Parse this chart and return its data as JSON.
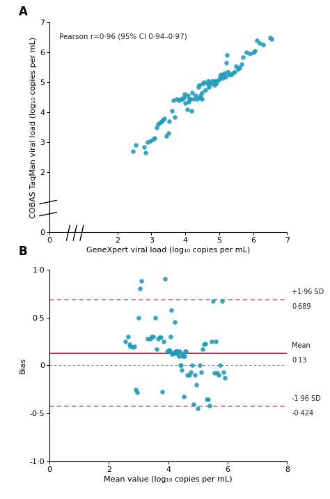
{
  "panel_A": {
    "label": "A",
    "xlabel": "GeneXpert viral load (log₁₀ copies per mL)",
    "ylabel": "COBAS TaqMan viral load (log₁₀ copies per mL)",
    "annotation": "Pearson r=0·96 (95% CI 0·94–0·97)",
    "xlim": [
      0,
      7
    ],
    "ylim": [
      0,
      7
    ],
    "xticks": [
      0,
      2,
      3,
      4,
      5,
      6,
      7
    ],
    "yticks": [
      0,
      2,
      3,
      4,
      5,
      6,
      7
    ],
    "dot_color": "#1E9BBD",
    "scatter_x": [
      2.45,
      2.55,
      2.78,
      2.82,
      2.9,
      2.98,
      3.05,
      3.1,
      3.15,
      3.2,
      3.25,
      3.3,
      3.35,
      3.38,
      3.45,
      3.5,
      3.52,
      3.6,
      3.65,
      3.7,
      3.75,
      3.82,
      3.88,
      3.92,
      3.95,
      3.98,
      4.0,
      4.05,
      4.08,
      4.1,
      4.12,
      4.15,
      4.18,
      4.2,
      4.25,
      4.3,
      4.35,
      4.38,
      4.4,
      4.42,
      4.45,
      4.48,
      4.5,
      4.52,
      4.55,
      4.6,
      4.65,
      4.68,
      4.7,
      4.75,
      4.8,
      4.85,
      4.88,
      4.9,
      4.95,
      5.0,
      5.02,
      5.05,
      5.1,
      5.12,
      5.15,
      5.18,
      5.2,
      5.22,
      5.25,
      5.3,
      5.35,
      5.4,
      5.45,
      5.5,
      5.55,
      5.6,
      5.65,
      5.7,
      5.8,
      5.9,
      6.0,
      6.05,
      6.1,
      6.2,
      6.3,
      6.5,
      6.55
    ],
    "scatter_y": [
      2.7,
      2.9,
      2.85,
      2.65,
      3.0,
      3.05,
      3.1,
      3.15,
      3.5,
      3.6,
      3.65,
      3.7,
      3.75,
      3.8,
      3.2,
      3.3,
      3.7,
      4.05,
      4.4,
      3.85,
      4.45,
      4.4,
      4.45,
      4.45,
      4.5,
      4.6,
      4.3,
      4.1,
      4.55,
      4.35,
      4.45,
      4.45,
      4.05,
      4.65,
      4.45,
      4.55,
      4.45,
      4.85,
      4.9,
      4.5,
      4.55,
      4.65,
      4.45,
      4.95,
      5.0,
      4.75,
      4.95,
      5.05,
      4.85,
      4.95,
      5.05,
      4.9,
      5.05,
      4.95,
      5.05,
      5.1,
      5.2,
      5.25,
      5.15,
      5.25,
      5.3,
      5.2,
      5.65,
      5.9,
      5.35,
      5.25,
      5.25,
      5.3,
      5.35,
      5.55,
      5.45,
      5.5,
      5.6,
      5.85,
      6.0,
      5.95,
      6.0,
      6.05,
      6.4,
      6.3,
      6.25,
      6.5,
      6.45
    ]
  },
  "panel_B": {
    "label": "B",
    "xlabel": "Mean value (log₁₀ copies per mL)",
    "ylabel": "Bias",
    "xlim": [
      0,
      8
    ],
    "ylim": [
      -1.0,
      1.0
    ],
    "xticks": [
      0,
      2,
      4,
      6,
      8
    ],
    "yticks": [
      -1.0,
      -0.5,
      0.0,
      0.5,
      1.0
    ],
    "ytick_labels": [
      "-1·0",
      "-0·5",
      "0",
      "0·5",
      "1·0"
    ],
    "dot_color": "#1E9BBD",
    "mean_line": 0.13,
    "upper_sd_line": 0.689,
    "lower_sd_line": -0.424,
    "zero_line": 0.0,
    "mean_color": "#9B2335",
    "sd_color": "#C06070",
    "zero_color": "#888888",
    "scatter_x": [
      2.55,
      2.65,
      2.7,
      2.72,
      2.8,
      2.85,
      2.9,
      2.95,
      3.0,
      3.05,
      3.1,
      3.3,
      3.4,
      3.45,
      3.5,
      3.55,
      3.6,
      3.65,
      3.7,
      3.75,
      3.8,
      3.85,
      3.9,
      3.95,
      4.0,
      4.02,
      4.05,
      4.08,
      4.1,
      4.12,
      4.15,
      4.18,
      4.2,
      4.22,
      4.25,
      4.28,
      4.3,
      4.32,
      4.35,
      4.38,
      4.4,
      4.42,
      4.45,
      4.48,
      4.5,
      4.52,
      4.55,
      4.58,
      4.6,
      4.65,
      4.7,
      4.75,
      4.8,
      4.85,
      4.9,
      4.95,
      5.0,
      5.05,
      5.1,
      5.15,
      5.2,
      5.25,
      5.3,
      5.35,
      5.4,
      5.45,
      5.5,
      5.55,
      5.6,
      5.65,
      5.7,
      5.75,
      5.8,
      5.85,
      5.9
    ],
    "scatter_y": [
      0.25,
      0.3,
      0.22,
      0.2,
      0.19,
      0.2,
      -0.25,
      -0.28,
      0.5,
      0.8,
      0.88,
      0.28,
      0.28,
      0.3,
      0.3,
      0.5,
      0.17,
      0.28,
      0.29,
      0.29,
      -0.27,
      0.25,
      0.9,
      0.15,
      0.15,
      0.16,
      0.15,
      0.3,
      0.58,
      0.12,
      0.13,
      0.13,
      0.13,
      0.45,
      0.15,
      0.15,
      0.15,
      0.12,
      0.1,
      0.15,
      0.0,
      0.0,
      -0.05,
      0.1,
      0.12,
      -0.32,
      0.1,
      0.15,
      0.15,
      -0.1,
      -0.1,
      -0.07,
      0.0,
      -0.4,
      -0.1,
      -0.2,
      -0.45,
      0.0,
      -0.07,
      0.17,
      0.22,
      0.23,
      -0.35,
      -0.35,
      -0.42,
      0.25,
      0.67,
      -0.08,
      0.25,
      -0.08,
      -0.1,
      0.0,
      0.67,
      -0.07,
      -0.13
    ]
  },
  "figure_bg": "#ffffff",
  "font_color": "#222222",
  "dot_size": 22,
  "dot_alpha": 0.9
}
